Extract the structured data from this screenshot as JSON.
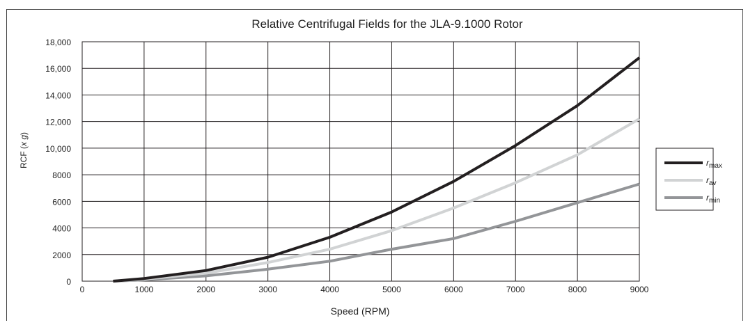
{
  "chart_data": {
    "type": "line",
    "title": "Relative Centrifugal Fields for the JLA-9.1000 Rotor",
    "xlabel": "Speed (RPM)",
    "ylabel": "RCF (x g)",
    "ylabel_parts": {
      "main": "RCF (",
      "italic": "x g",
      "end": ")"
    },
    "xlim": [
      0,
      9000
    ],
    "ylim": [
      0,
      18000
    ],
    "x_ticks": [
      0,
      1000,
      2000,
      3000,
      4000,
      5000,
      6000,
      7000,
      8000,
      9000
    ],
    "x_tick_labels": [
      "0",
      "1000",
      "2000",
      "3000",
      "4000",
      "5000",
      "6000",
      "7000",
      "8000",
      "9000"
    ],
    "y_ticks": [
      0,
      2000,
      4000,
      6000,
      8000,
      10000,
      12000,
      14000,
      16000,
      18000
    ],
    "y_tick_labels": [
      "0",
      "2000",
      "4000",
      "6000",
      "8000",
      "10,000",
      "12,000",
      "14,000",
      "16,000",
      "18,000"
    ],
    "grid": true,
    "legend_position": "right",
    "series": [
      {
        "name": "rmax",
        "label_main": "r",
        "label_sub": "max",
        "color": "#231f20",
        "x": [
          500,
          1000,
          2000,
          3000,
          4000,
          5000,
          6000,
          7000,
          8000,
          9000
        ],
        "y": [
          0,
          200,
          800,
          1800,
          3300,
          5200,
          7500,
          10200,
          13200,
          16800
        ]
      },
      {
        "name": "rav",
        "label_main": "r",
        "label_sub": "av",
        "color": "#d1d3d4",
        "x": [
          500,
          1000,
          2000,
          3000,
          4000,
          5000,
          6000,
          7000,
          8000,
          9000
        ],
        "y": [
          0,
          150,
          600,
          1400,
          2400,
          3800,
          5500,
          7400,
          9500,
          12200
        ]
      },
      {
        "name": "rmin",
        "label_main": "r",
        "label_sub": "min",
        "color": "#939598",
        "x": [
          500,
          1000,
          2000,
          3000,
          4000,
          5000,
          6000,
          7000,
          8000,
          9000
        ],
        "y": [
          0,
          100,
          400,
          900,
          1500,
          2400,
          3200,
          4500,
          5900,
          7300
        ]
      }
    ]
  }
}
